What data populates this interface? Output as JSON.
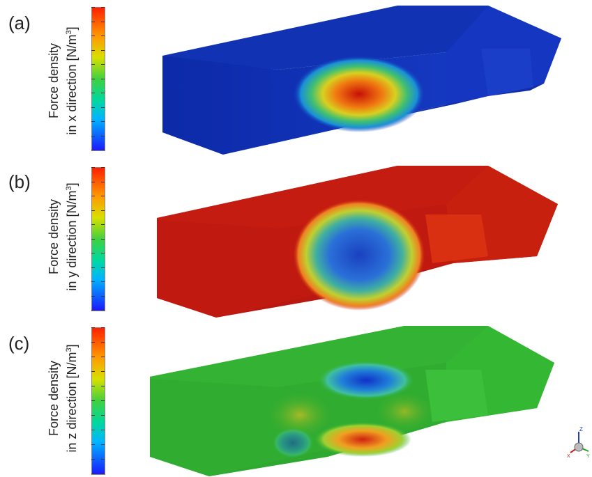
{
  "panels": [
    {
      "label": "(a)",
      "colorbar_title_line1": "Force density",
      "colorbar_title_line2_prefix": "in x direction [N/m",
      "colorbar_title_sup": "3",
      "colorbar_title_suffix": "]",
      "dominant_color": "#1030b8",
      "hotspot_color": "#d02010"
    },
    {
      "label": "(b)",
      "colorbar_title_line1": "Force density",
      "colorbar_title_line2_prefix": "in y direction [N/m",
      "colorbar_title_sup": "3",
      "colorbar_title_suffix": "]",
      "dominant_color": "#c01a10",
      "hotspot_color": "#1a40c0"
    },
    {
      "label": "(c)",
      "colorbar_title_line1": "Force density",
      "colorbar_title_line2_prefix": "in z direction [N/m",
      "colorbar_title_sup": "3",
      "colorbar_title_suffix": "]",
      "dominant_color": "#30b030",
      "hotspot_color": "#1040d0"
    }
  ],
  "triad": {
    "axis_z": "Z",
    "axis_x": "X",
    "axis_y": "Y",
    "icon": "coordinate-triad-icon"
  }
}
